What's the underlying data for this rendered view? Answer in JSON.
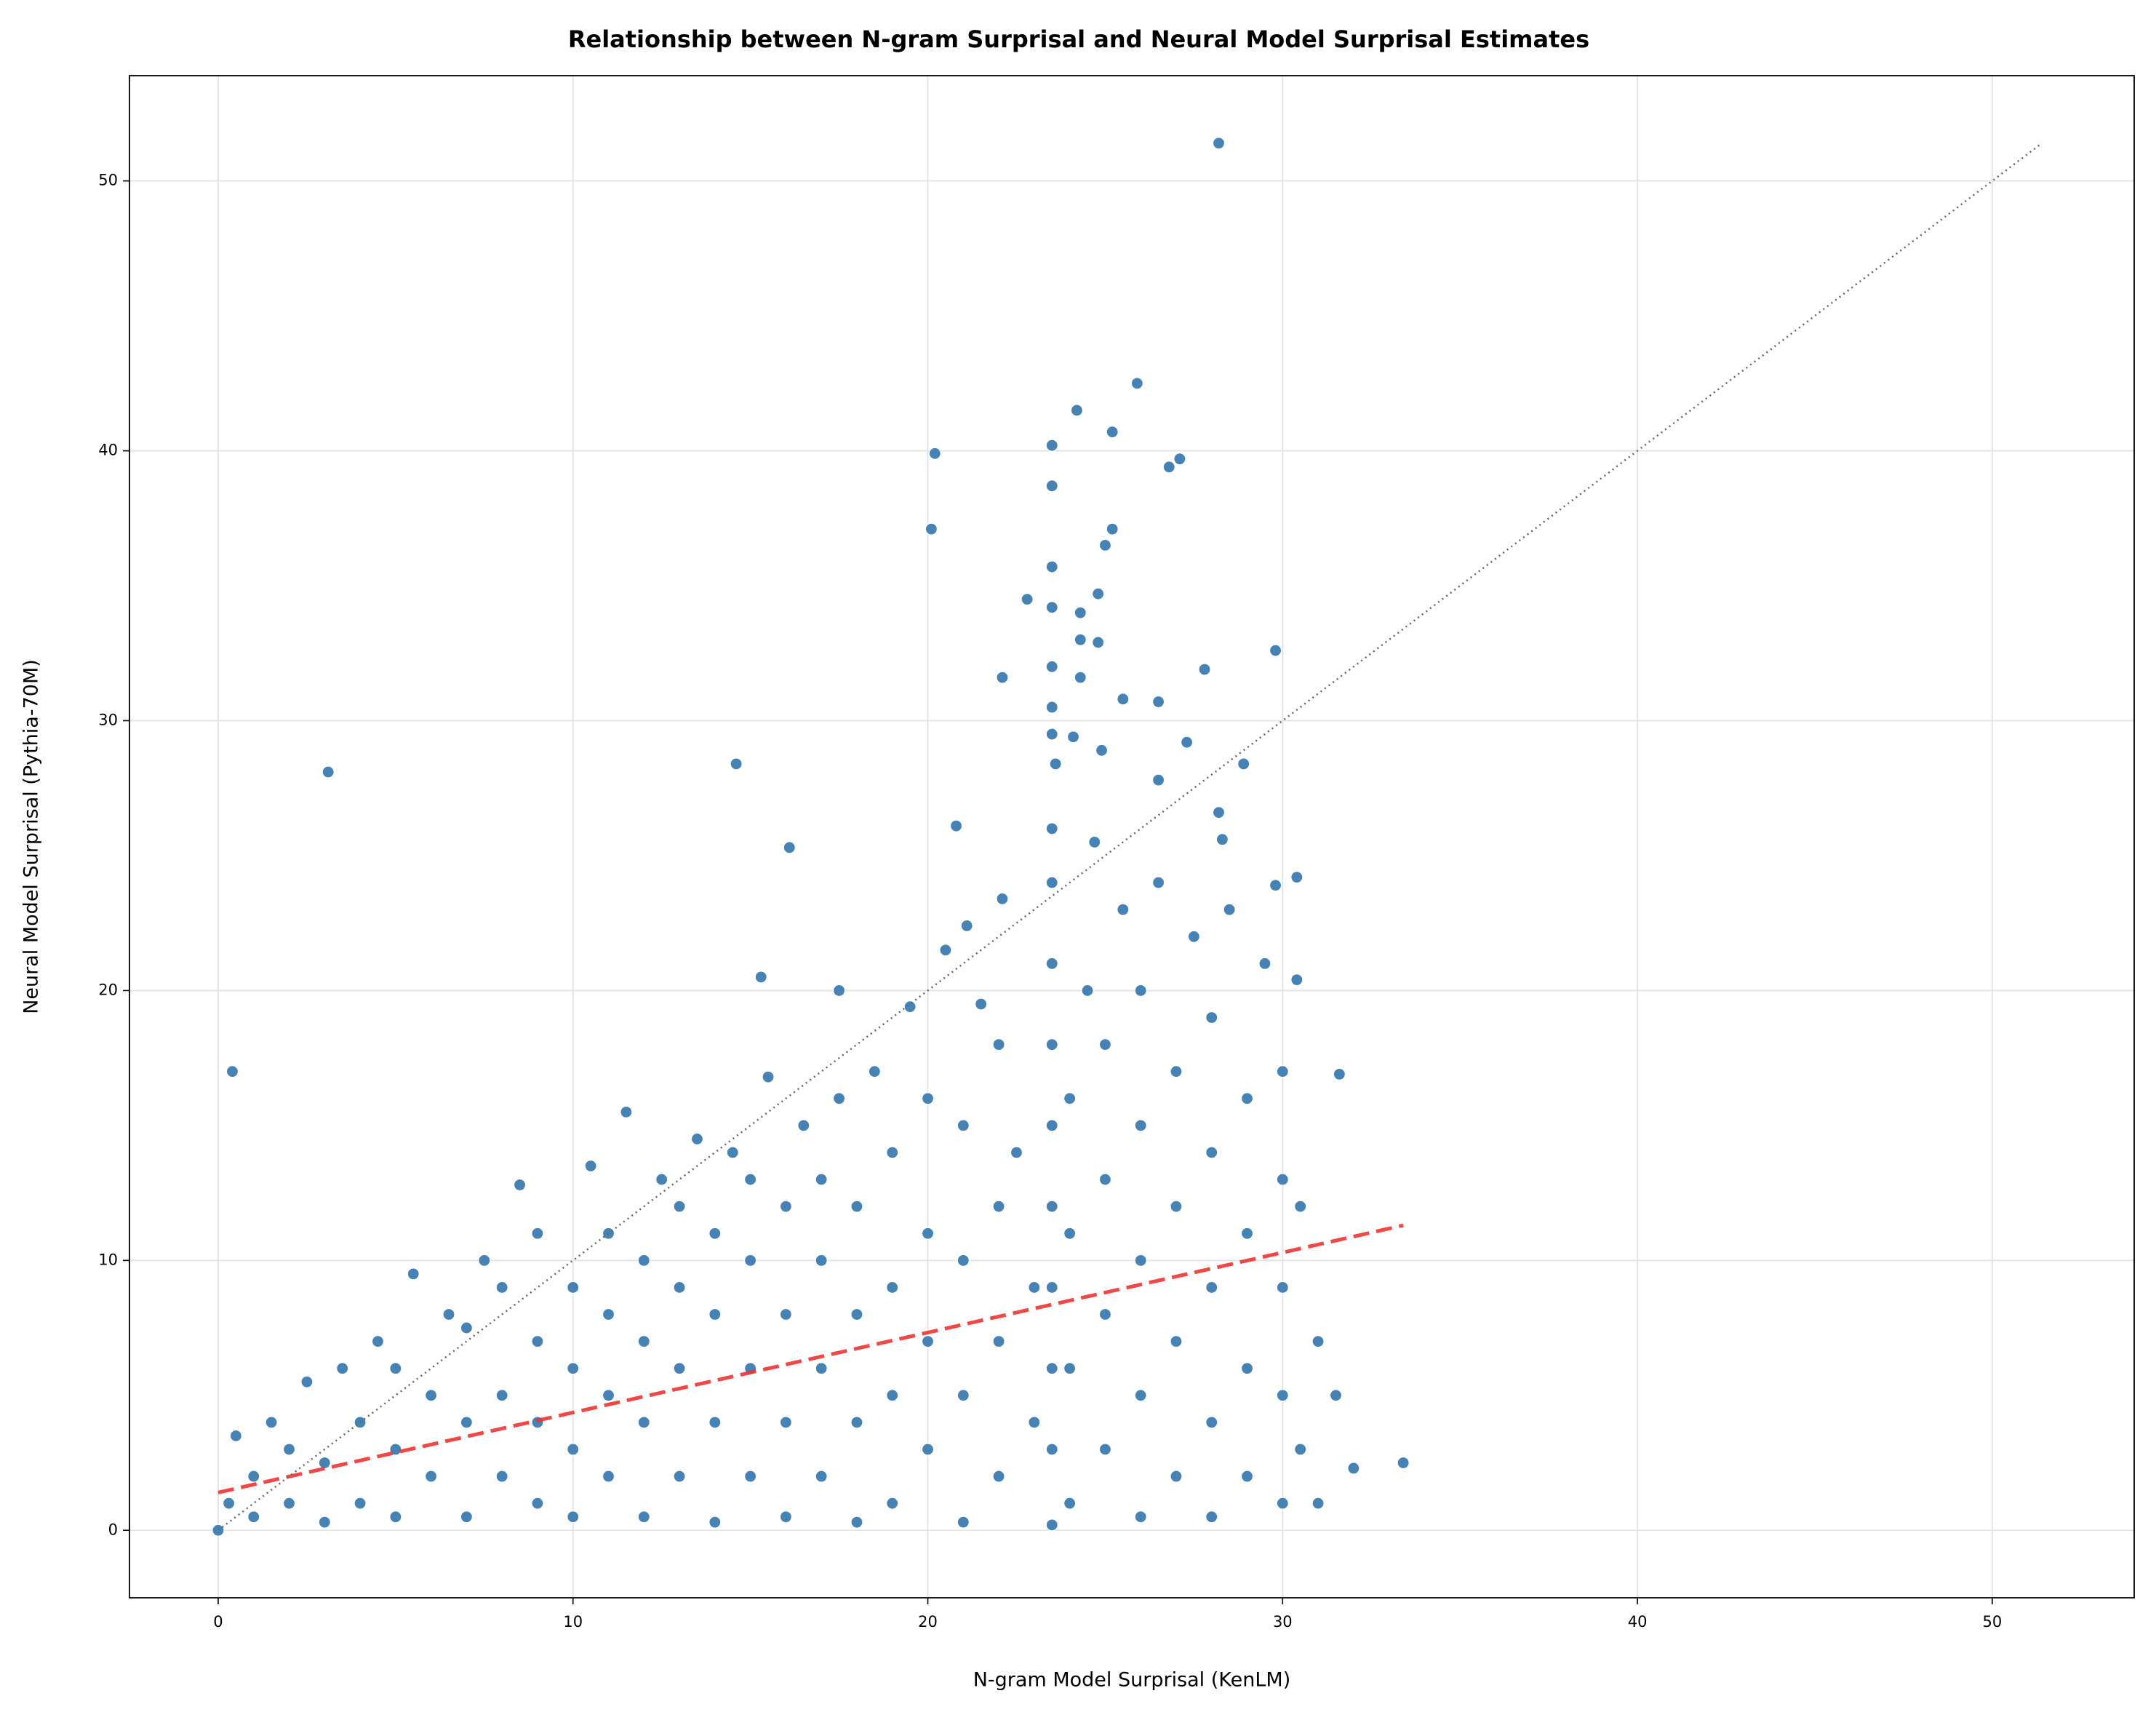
{
  "chart_data": {
    "type": "scatter",
    "title": "Relationship between N-gram Surprisal and Neural Model Surprisal Estimates",
    "x_label": "N-gram Model Surprisal (KenLM)",
    "y_label": "Neural Model Surprisal (Pythia-70M)",
    "xlim": [
      -2.5,
      54
    ],
    "ylim": [
      -2.5,
      53.9
    ],
    "xticks": [
      0,
      10,
      20,
      30,
      40,
      50
    ],
    "yticks": [
      0,
      10,
      20,
      30,
      40,
      50
    ],
    "grid": true,
    "series": [
      {
        "color": "#4682b4",
        "x": [
          28.2,
          25.9,
          24.2,
          25.2,
          20.2,
          27.1,
          26.8,
          23.5,
          23.5,
          20.1,
          25.2,
          25,
          24.8,
          23.5,
          23.5,
          22.8,
          24.3,
          24.3,
          24.8,
          29.8,
          23.5,
          24.3,
          22.1,
          27.8,
          25.5,
          26.5,
          23.5,
          23.5,
          24.1,
          24.9,
          27.3,
          28.9,
          23.6,
          3.1,
          14.6,
          26.5,
          20.8,
          16.1,
          28.2,
          28.3,
          24.7,
          30.4,
          29.8,
          0.4,
          15.3,
          17.5,
          33.4,
          31.6,
          30.4,
          21.1,
          22.1,
          0,
          0.3,
          0.5,
          1,
          1,
          1.5,
          2,
          2,
          2.5,
          3,
          3,
          3.5,
          4,
          4,
          4.5,
          5,
          5,
          5,
          5.5,
          6,
          6,
          6.5,
          7,
          7,
          7,
          7.5,
          8,
          8,
          8,
          8.5,
          9,
          9,
          9,
          9,
          10,
          10,
          10,
          10,
          10.5,
          11,
          11,
          11,
          11,
          11.5,
          12,
          12,
          12,
          12,
          12.5,
          13,
          13,
          13,
          13,
          13.5,
          14,
          14,
          14,
          14,
          14.5,
          15,
          15,
          15,
          15,
          15.5,
          16,
          16,
          16,
          16,
          16.5,
          17,
          17,
          17,
          17,
          17.5,
          18,
          18,
          18,
          18,
          18.5,
          19,
          19,
          19,
          19,
          19.5,
          20,
          20,
          20,
          20,
          20.5,
          21,
          21,
          21,
          21,
          21.5,
          22,
          22,
          22,
          22,
          22.5,
          23,
          23,
          23.5,
          23.5,
          23.5,
          23.5,
          23.5,
          23.5,
          23.5,
          23.5,
          23.5,
          23.5,
          24,
          24,
          24,
          24,
          24.5,
          25,
          25,
          25,
          25,
          25.5,
          26,
          26,
          26,
          26,
          26,
          26.5,
          27,
          27,
          27,
          27,
          27.5,
          28,
          28,
          28,
          28,
          28,
          28.5,
          29,
          29,
          29,
          29,
          29.5,
          30,
          30,
          30,
          30,
          30,
          30.5,
          30.5,
          31,
          31,
          31.5,
          32
        ],
        "y": [
          51.4,
          42.5,
          41.5,
          40.7,
          39.9,
          39.7,
          39.4,
          40.2,
          38.7,
          37.1,
          37.1,
          36.5,
          34.7,
          35.7,
          34.2,
          34.5,
          34,
          33,
          32.9,
          32.6,
          32,
          31.6,
          31.6,
          31.9,
          30.8,
          30.7,
          30.5,
          29.5,
          29.4,
          28.9,
          29.2,
          28.4,
          28.4,
          28.1,
          28.4,
          27.8,
          26.1,
          25.3,
          26.6,
          25.6,
          25.5,
          24.2,
          23.9,
          17,
          20.5,
          20,
          2.5,
          16.9,
          20.4,
          22.4,
          23.4,
          0,
          1,
          3.5,
          0.5,
          2,
          4,
          1,
          3,
          5.5,
          0.3,
          2.5,
          6,
          1,
          4,
          7,
          0.5,
          3,
          6,
          9.5,
          2,
          5,
          8,
          0.5,
          4,
          7.5,
          10,
          2,
          5,
          9,
          12.8,
          1,
          4,
          7,
          11,
          0.5,
          3,
          6,
          9,
          13.5,
          2,
          5,
          8,
          11,
          15.5,
          0.5,
          4,
          7,
          10,
          13,
          2,
          6,
          9,
          12,
          14.5,
          0.3,
          4,
          8,
          11,
          14,
          2,
          6,
          10,
          13,
          16.8,
          0.5,
          4,
          8,
          12,
          15,
          2,
          6,
          10,
          13,
          16,
          0.3,
          4,
          8,
          12,
          17,
          1,
          5,
          9,
          14,
          19.4,
          3,
          7,
          11,
          16,
          21.5,
          0.3,
          5,
          10,
          15,
          19.5,
          2,
          7,
          12,
          18,
          14,
          4,
          9,
          0.2,
          3,
          6,
          9,
          12,
          15,
          18,
          21,
          24,
          26,
          1,
          6,
          11,
          16,
          20,
          3,
          8,
          13,
          18,
          23,
          0.5,
          5,
          10,
          15,
          20,
          24,
          2,
          7,
          12,
          17,
          22,
          0.5,
          4,
          9,
          14,
          19,
          23,
          2,
          6,
          11,
          16,
          21,
          1,
          5,
          9,
          13,
          17,
          3,
          12,
          1,
          7,
          5,
          2.3
        ]
      }
    ],
    "lines": [
      {
        "x": [
          0,
          33.4
        ],
        "y": [
          1.4,
          11.3
        ],
        "color": "#ee3333",
        "style": "dashed"
      },
      {
        "x": [
          0,
          51.4
        ],
        "y": [
          0,
          51.4
        ],
        "color": "#666666",
        "style": "dotted"
      }
    ]
  }
}
